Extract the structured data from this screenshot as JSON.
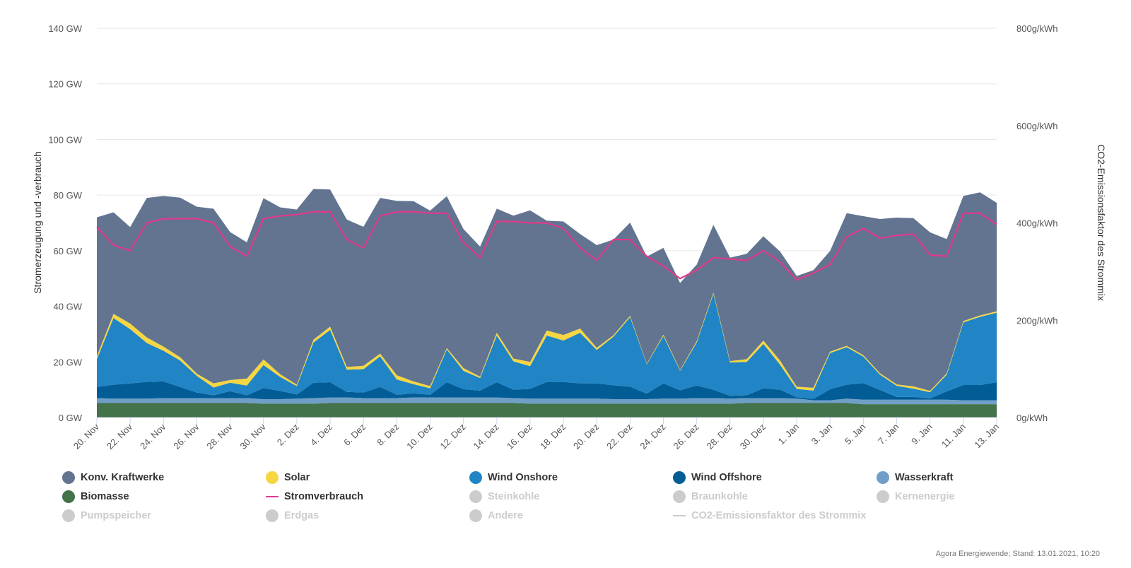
{
  "credit": "Agora Energiewende; Stand: 13.01.2021, 10:20",
  "chart_data": {
    "type": "area",
    "title": "",
    "ylabel": "Stromerzeugung und -verbrauch",
    "ylabel_right": "CO2-Emissionsfaktor des Strommix",
    "ylim": [
      0,
      140
    ],
    "ylim_right": [
      0,
      800
    ],
    "yticks": [
      "0 GW",
      "20 GW",
      "40 GW",
      "60 GW",
      "80 GW",
      "100 GW",
      "120 GW",
      "140 GW"
    ],
    "yticks_right": [
      "0g/kWh",
      "200g/kWh",
      "400g/kWh",
      "600g/kWh",
      "800g/kWh"
    ],
    "x_tick_labels": [
      "20. Nov",
      "22. Nov",
      "24. Nov",
      "26. Nov",
      "28. Nov",
      "30. Nov",
      "2. Dez",
      "4. Dez",
      "6. Dez",
      "8. Dez",
      "10. Dez",
      "12. Dez",
      "14. Dez",
      "16. Dez",
      "18. Dez",
      "20. Dez",
      "22. Dez",
      "24. Dez",
      "26. Dez",
      "28. Dez",
      "30. Dez",
      "1. Jan",
      "3. Jan",
      "5. Jan",
      "7. Jan",
      "9. Jan",
      "11. Jan",
      "13. Jan"
    ],
    "x_start": "2020-11-20",
    "x_end": "2021-01-13",
    "grid": true,
    "legend_position": "bottom",
    "stacked_series": [
      {
        "name": "Biomasse",
        "color": "#44724a",
        "values": [
          5.2,
          5.2,
          5.2,
          5.2,
          5.2,
          5.2,
          5.2,
          5.2,
          5.2,
          5.2,
          5.0,
          5.0,
          5.0,
          5.0,
          5.2,
          5.2,
          5.2,
          5.2,
          5.2,
          5.2,
          5.2,
          5.2,
          5.2,
          5.2,
          5.2,
          5.2,
          5.0,
          5.0,
          5.0,
          5.0,
          5.0,
          5.0,
          5.0,
          5.0,
          5.0,
          5.0,
          5.0,
          5.0,
          5.0,
          5.2,
          5.2,
          5.2,
          5.2,
          5.2,
          5.2,
          5.2,
          4.8,
          4.8,
          4.8,
          4.8,
          4.8,
          4.8,
          4.8,
          4.8,
          4.8
        ]
      },
      {
        "name": "Wasserkraft",
        "color": "#6f9fc7",
        "values": [
          1.8,
          1.6,
          1.6,
          1.6,
          1.8,
          1.8,
          1.8,
          1.8,
          1.8,
          1.8,
          1.6,
          1.6,
          1.8,
          2.0,
          2.0,
          2.0,
          1.8,
          1.8,
          1.8,
          2.0,
          2.0,
          2.0,
          2.0,
          2.0,
          2.0,
          1.8,
          1.8,
          1.8,
          1.8,
          1.8,
          1.8,
          1.6,
          1.6,
          1.6,
          1.8,
          1.8,
          2.0,
          2.0,
          1.8,
          1.8,
          1.8,
          1.8,
          1.6,
          1.0,
          1.0,
          1.6,
          1.6,
          1.6,
          1.6,
          1.6,
          1.6,
          1.6,
          1.4,
          1.4,
          1.4
        ]
      },
      {
        "name": "Wind Offshore",
        "color": "#025d96",
        "values": [
          4.0,
          5.0,
          5.5,
          6.0,
          6.0,
          4.0,
          2.0,
          1.0,
          2.5,
          1.0,
          4.0,
          3.0,
          1.5,
          5.5,
          5.5,
          2.0,
          2.0,
          4.0,
          1.2,
          1.5,
          1.0,
          5.5,
          3.0,
          2.5,
          5.5,
          3.0,
          3.5,
          6.0,
          6.0,
          5.5,
          5.5,
          5.0,
          4.5,
          2.0,
          5.5,
          3.0,
          4.5,
          3.0,
          1.0,
          1.0,
          3.5,
          3.0,
          0.5,
          0.5,
          4.0,
          5.0,
          6.0,
          3.5,
          1.0,
          1.0,
          0.5,
          3.0,
          5.5,
          5.5,
          6.5
        ]
      },
      {
        "name": "Wind Onshore",
        "color": "#2185c5",
        "values": [
          10.0,
          24.0,
          19.5,
          14.0,
          11.0,
          9.5,
          6.0,
          2.8,
          3.0,
          3.5,
          8.3,
          5.0,
          3.0,
          14.5,
          18.8,
          8.0,
          8.4,
          11.0,
          5.5,
          3.3,
          2.3,
          11.8,
          6.6,
          4.5,
          16.8,
          10.2,
          8.2,
          16.7,
          14.9,
          18.2,
          12.0,
          17.5,
          25.0,
          10.5,
          17.0,
          7.0,
          15.5,
          34.5,
          12.0,
          12.0,
          16.0,
          9.0,
          3.0,
          3.0,
          13.0,
          13.5,
          9.5,
          5.5,
          4.0,
          3.0,
          2.2,
          6.0,
          22.5,
          24.5,
          25.0
        ]
      },
      {
        "name": "Solar",
        "color": "#f6d642",
        "values": [
          1.0,
          1.5,
          2.0,
          2.0,
          1.5,
          1.2,
          0.8,
          1.5,
          1.0,
          2.5,
          2.0,
          1.0,
          0.5,
          1.0,
          1.2,
          1.0,
          1.2,
          1.0,
          1.5,
          1.0,
          0.8,
          0.5,
          1.0,
          0.5,
          1.0,
          1.0,
          1.5,
          1.8,
          2.0,
          1.5,
          0.8,
          0.5,
          0.5,
          0.2,
          0.5,
          0.3,
          0.5,
          0.5,
          0.5,
          1.0,
          1.2,
          1.5,
          0.8,
          1.0,
          0.5,
          0.5,
          0.5,
          0.5,
          0.5,
          0.8,
          0.5,
          0.5,
          0.5,
          0.5,
          0.5
        ]
      },
      {
        "name": "Konv. Kraftwerke",
        "color": "#627490",
        "values": [
          50.0,
          36.5,
          34.7,
          50.2,
          54.2,
          57.4,
          60.0,
          62.8,
          53.2,
          49.0,
          58.0,
          60.0,
          63.0,
          54.2,
          49.3,
          53.0,
          50.0,
          56.0,
          62.7,
          64.8,
          63.1,
          54.6,
          50.0,
          46.8,
          44.6,
          51.4,
          54.5,
          39.5,
          40.8,
          34.0,
          36.9,
          34.4,
          33.5,
          38.6,
          31.2,
          31.3,
          27.5,
          24.3,
          37.2,
          37.9,
          37.5,
          39.2,
          39.8,
          42.3,
          36.2,
          47.7,
          50.0,
          55.5,
          60.0,
          60.5,
          57.0,
          48.3,
          45.0,
          44.3,
          39.0
        ]
      }
    ],
    "line_series": [
      {
        "name": "Stromverbrauch",
        "color": "#e03b8b",
        "values": [
          68.5,
          62.0,
          60.0,
          70.0,
          71.5,
          71.5,
          71.5,
          70.0,
          61.5,
          58.0,
          71.5,
          72.5,
          73.0,
          74.0,
          74.0,
          64.0,
          61.0,
          72.5,
          74.0,
          74.0,
          73.5,
          73.5,
          63.0,
          57.5,
          70.5,
          70.5,
          70.0,
          70.0,
          68.0,
          61.0,
          56.5,
          64.0,
          64.0,
          58.0,
          54.5,
          50.0,
          53.0,
          57.5,
          57.0,
          56.5,
          60.0,
          56.0,
          49.5,
          52.0,
          55.0,
          65.0,
          68.0,
          64.5,
          65.5,
          66.0,
          58.5,
          58.0,
          73.5,
          73.5,
          69.5
        ]
      }
    ],
    "legend": [
      {
        "label": "Konv. Kraftwerke",
        "color": "#627490",
        "active": true,
        "marker": "dot"
      },
      {
        "label": "Solar",
        "color": "#f6d642",
        "active": true,
        "marker": "dot"
      },
      {
        "label": "Wind Onshore",
        "color": "#2185c5",
        "active": true,
        "marker": "dot"
      },
      {
        "label": "Wind Offshore",
        "color": "#025d96",
        "active": true,
        "marker": "dot"
      },
      {
        "label": "Wasserkraft",
        "color": "#6f9fc7",
        "active": true,
        "marker": "dot"
      },
      {
        "label": "Biomasse",
        "color": "#44724a",
        "active": true,
        "marker": "dot"
      },
      {
        "label": "Stromverbrauch",
        "color": "#e03b8b",
        "active": true,
        "marker": "line"
      },
      {
        "label": "Steinkohle",
        "color": "#cccccc",
        "active": false,
        "marker": "dot"
      },
      {
        "label": "Braunkohle",
        "color": "#cccccc",
        "active": false,
        "marker": "dot"
      },
      {
        "label": "Kernenergie",
        "color": "#cccccc",
        "active": false,
        "marker": "dot"
      },
      {
        "label": "Pumpspeicher",
        "color": "#cccccc",
        "active": false,
        "marker": "dot"
      },
      {
        "label": "Erdgas",
        "color": "#cccccc",
        "active": false,
        "marker": "dot"
      },
      {
        "label": "Andere",
        "color": "#cccccc",
        "active": false,
        "marker": "dot"
      },
      {
        "label": "CO2-Emissionsfaktor des Strommix",
        "color": "#cccccc",
        "active": false,
        "marker": "line"
      }
    ]
  }
}
